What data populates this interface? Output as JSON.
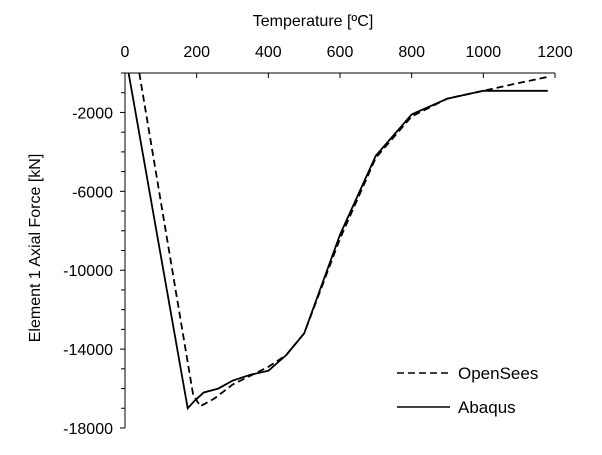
{
  "chart_data": {
    "type": "line",
    "xlabel": "Temperature [ºC]",
    "ylabel": "Element 1 Axial  Force [kN]",
    "xlim": [
      0,
      1200
    ],
    "ylim": [
      -18000,
      0
    ],
    "x_ticks": [
      0,
      200,
      400,
      600,
      800,
      1000,
      1200
    ],
    "x_tick_labels": [
      "0",
      "200",
      "400",
      "600",
      "800",
      "1000",
      "1200"
    ],
    "y_ticks": [
      -2000,
      -6000,
      -10000,
      -14000,
      -18000
    ],
    "y_tick_labels": [
      "-2000",
      "-6000",
      "-10000",
      "-14000",
      "-18000"
    ],
    "x_axis_position": "top",
    "grid": false,
    "legend_position": "bottom-right",
    "series": [
      {
        "name": "OpenSees",
        "style": "dashed",
        "color": "#000000",
        "x": [
          40,
          190,
          210,
          250,
          300,
          400,
          450,
          500,
          600,
          700,
          800,
          900,
          1000,
          1100,
          1180
        ],
        "y": [
          0,
          -16300,
          -16900,
          -16500,
          -15800,
          -14900,
          -14300,
          -13200,
          -8400,
          -4300,
          -2200,
          -1300,
          -900,
          -500,
          -200
        ]
      },
      {
        "name": "Abaqus",
        "style": "solid",
        "color": "#000000",
        "x": [
          10,
          175,
          195,
          220,
          260,
          300,
          350,
          400,
          450,
          500,
          600,
          700,
          800,
          900,
          1000,
          1100,
          1180
        ],
        "y": [
          0,
          -17000,
          -16600,
          -16200,
          -16000,
          -15600,
          -15300,
          -15100,
          -14300,
          -13200,
          -8200,
          -4200,
          -2100,
          -1300,
          -900,
          -900,
          -900
        ]
      }
    ]
  }
}
